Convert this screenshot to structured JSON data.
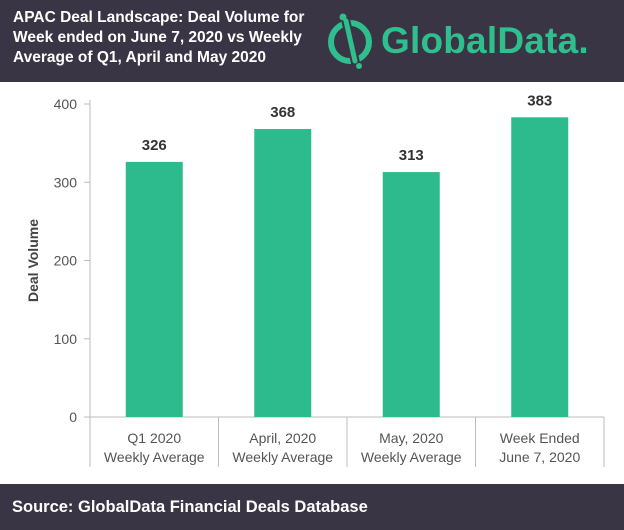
{
  "header": {
    "title": "APAC Deal Landscape: Deal Volume for\nWeek ended on June 7, 2020 vs Weekly\nAverage of Q1, April and May 2020",
    "logo_text": "GlobalData",
    "logo_dot": "."
  },
  "footer": {
    "source": "Source: GlobalData Financial Deals Database"
  },
  "colors": {
    "bar": "#2dba8c",
    "header_bg": "#3a3545",
    "brand": "#2fbf8f"
  },
  "chart_data": {
    "type": "bar",
    "categories": [
      [
        "Q1 2020",
        "Weekly Average"
      ],
      [
        "April, 2020",
        "Weekly Average"
      ],
      [
        "May, 2020",
        "Weekly Average"
      ],
      [
        "Week Ended",
        "June 7, 2020"
      ]
    ],
    "values": [
      326,
      368,
      313,
      383
    ],
    "data_labels": [
      "326",
      "368",
      "313",
      "383"
    ],
    "ylabel": "Deal Volume",
    "xlabel": "",
    "ylim": [
      0,
      400
    ],
    "yticks": [
      0,
      100,
      200,
      300,
      400
    ],
    "grid": false,
    "legend": "none"
  }
}
